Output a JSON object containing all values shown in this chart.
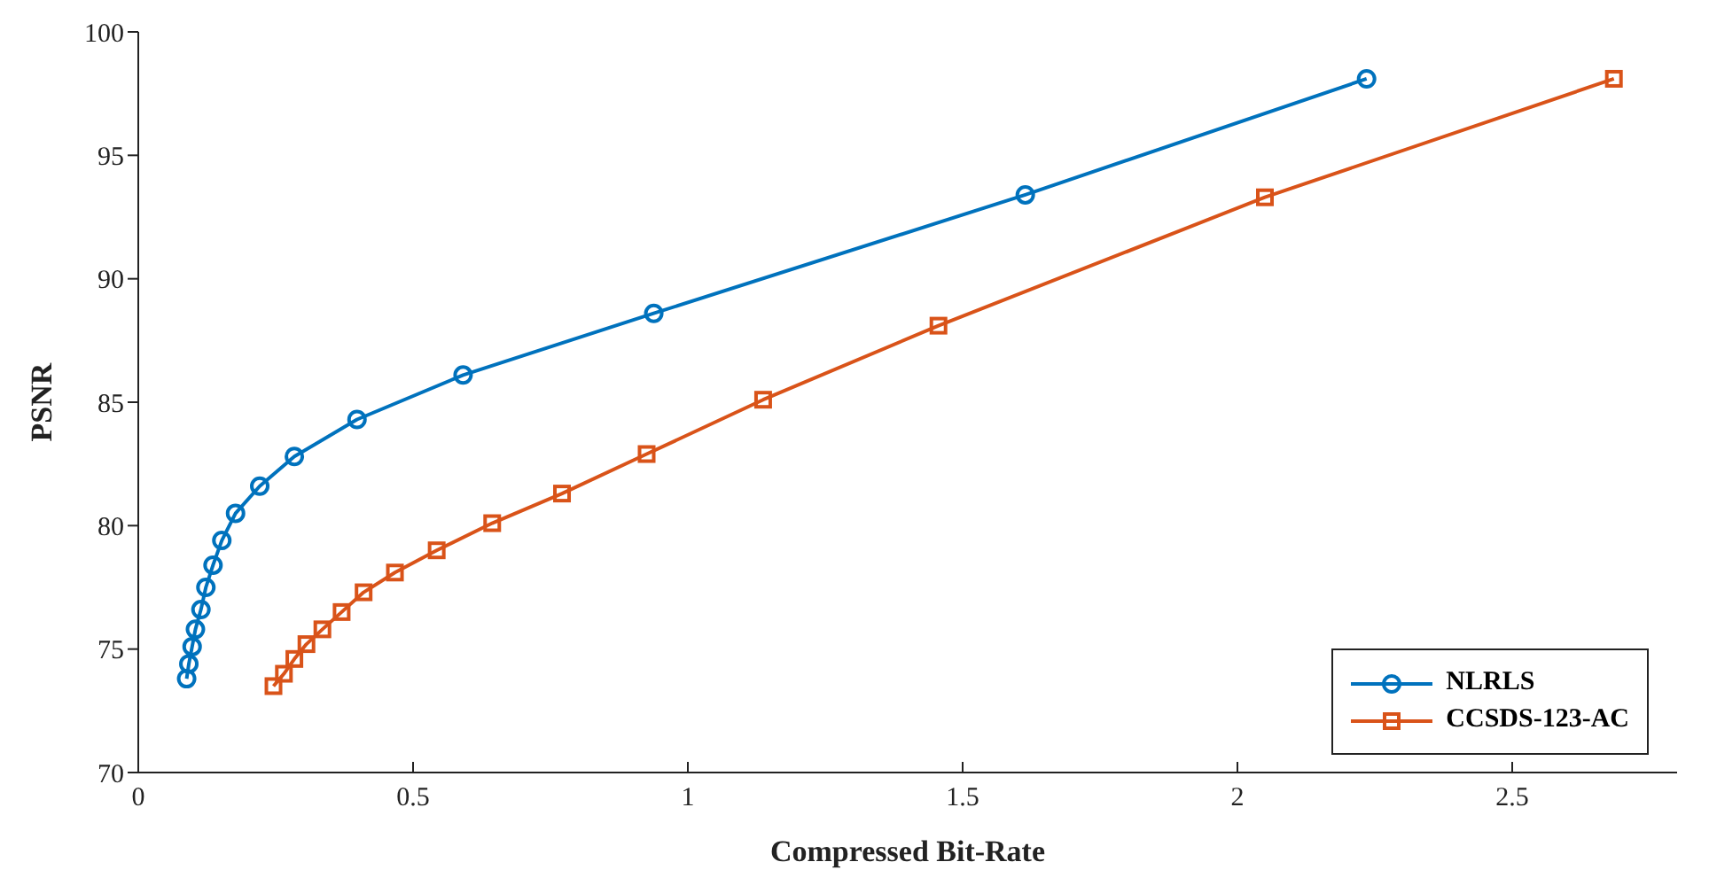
{
  "chart_data": {
    "type": "line",
    "xlabel": "Compressed Bit-Rate",
    "ylabel": "PSNR",
    "xlim": [
      0,
      2.8
    ],
    "xticks": [
      0,
      0.5,
      1,
      1.5,
      2,
      2.5
    ],
    "ylim": [
      70,
      100
    ],
    "yticks": [
      70,
      75,
      80,
      85,
      90,
      95,
      100
    ],
    "grid": false,
    "legend": "bottom right",
    "line_style": "solid",
    "series": [
      {
        "name": "NLRLS",
        "color": "#0072bd",
        "marker": "circle",
        "x": [
          0.088,
          0.092,
          0.098,
          0.104,
          0.114,
          0.123,
          0.136,
          0.152,
          0.177,
          0.221,
          0.284,
          0.398,
          0.591,
          0.938,
          1.614,
          2.235
        ],
        "values": [
          73.8,
          74.4,
          75.1,
          75.8,
          76.6,
          77.5,
          78.4,
          79.4,
          80.5,
          81.6,
          82.8,
          84.3,
          86.1,
          88.6,
          93.4,
          98.1
        ]
      },
      {
        "name": "CCSDS-123-AC",
        "color": "#d95319",
        "marker": "square",
        "x": [
          0.246,
          0.265,
          0.284,
          0.306,
          0.335,
          0.37,
          0.41,
          0.467,
          0.543,
          0.644,
          0.771,
          0.925,
          1.137,
          1.456,
          2.05,
          2.685
        ],
        "values": [
          73.5,
          74.0,
          74.6,
          75.2,
          75.8,
          76.5,
          77.3,
          78.1,
          79.0,
          80.1,
          81.3,
          82.9,
          85.1,
          88.1,
          93.3,
          98.1
        ]
      }
    ]
  }
}
